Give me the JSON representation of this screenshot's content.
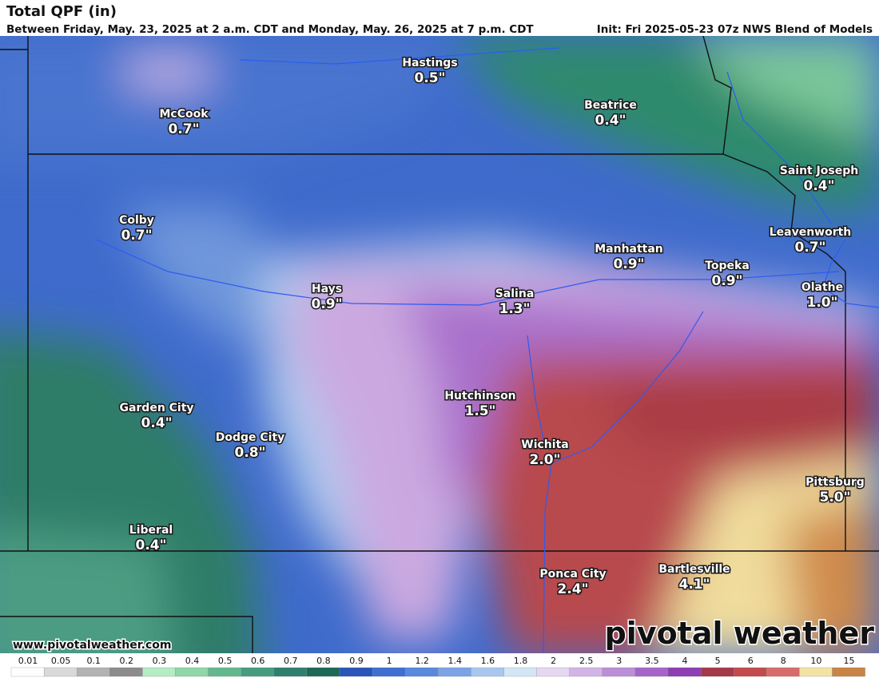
{
  "header": {
    "title": "Total QPF (in)",
    "subtitle": "Between Friday, May. 23, 2025 at 2 a.m. CDT and Monday, May. 26, 2025 at 7 p.m. CDT",
    "init": "Init: Fri 2025-05-23 07z NWS Blend of Models"
  },
  "cities": [
    {
      "name": "Hastings",
      "value": "0.5\""
    },
    {
      "name": "McCook",
      "value": "0.7\""
    },
    {
      "name": "Beatrice",
      "value": "0.4\""
    },
    {
      "name": "Saint Joseph",
      "value": "0.4\""
    },
    {
      "name": "Colby",
      "value": "0.7\""
    },
    {
      "name": "Leavenworth",
      "value": "0.7\""
    },
    {
      "name": "Manhattan",
      "value": "0.9\""
    },
    {
      "name": "Topeka",
      "value": "0.9\""
    },
    {
      "name": "Olathe",
      "value": "1.0\""
    },
    {
      "name": "Hays",
      "value": "0.9\""
    },
    {
      "name": "Salina",
      "value": "1.3\""
    },
    {
      "name": "Hutchinson",
      "value": "1.5\""
    },
    {
      "name": "Garden City",
      "value": "0.4\""
    },
    {
      "name": "Dodge City",
      "value": "0.8\""
    },
    {
      "name": "Wichita",
      "value": "2.0\""
    },
    {
      "name": "Pittsburg",
      "value": "5.0\""
    },
    {
      "name": "Liberal",
      "value": "0.4\""
    },
    {
      "name": "Ponca City",
      "value": "2.4\""
    },
    {
      "name": "Bartlesville",
      "value": "4.1\""
    }
  ],
  "footer": {
    "url": "www.pivotalweather.com",
    "logo": "pivotal weather"
  },
  "colorbar": {
    "labels": [
      "0.01",
      "0.05",
      "0.1",
      "0.2",
      "0.3",
      "0.4",
      "0.5",
      "0.6",
      "0.7",
      "0.8",
      "0.9",
      "1",
      "1.2",
      "1.4",
      "1.6",
      "1.8",
      "2",
      "2.5",
      "3",
      "3.5",
      "4",
      "5",
      "6",
      "8",
      "10",
      "15"
    ],
    "colors": [
      "#ffffff",
      "#d9d9d9",
      "#b3b3b3",
      "#8c8c8c",
      "#b5ecc4",
      "#8fd6a8",
      "#64b88e",
      "#469c7f",
      "#2f7f6e",
      "#1d6857",
      "#2b55b8",
      "#3f6fd0",
      "#5a88dc",
      "#7ba3e6",
      "#a9c7ee",
      "#d3e6f5",
      "#e6d7f0",
      "#d2b4e6",
      "#bc8ed8",
      "#a565c8",
      "#8e3eb3",
      "#a43a4a",
      "#c24b4b",
      "#d86b6b",
      "#f2e3a4",
      "#c98445"
    ]
  }
}
